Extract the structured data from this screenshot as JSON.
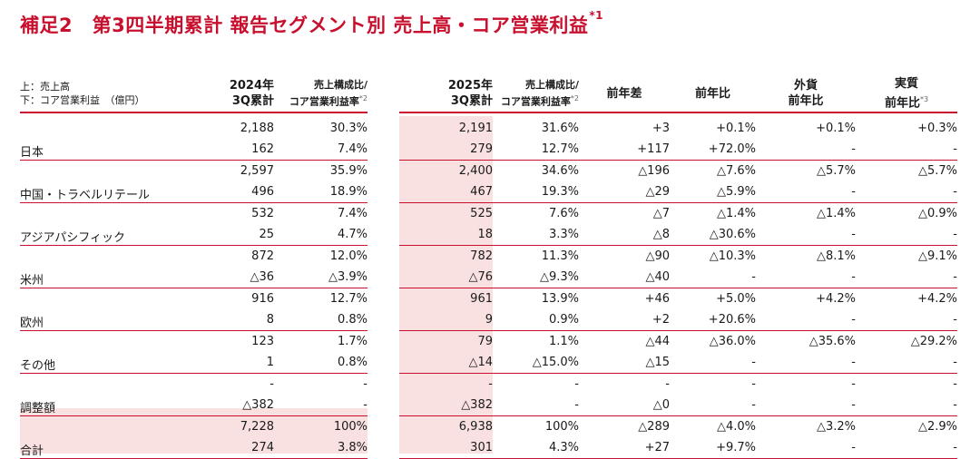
{
  "title": {
    "main": "補足2　第3四半期累計 報告セグメント別 売上高・コア営業利益",
    "note": "*1"
  },
  "header": {
    "legend_line1": "上：売上高",
    "legend_line2": "下：コア営業利益　（億円）",
    "col_2024_line1": "2024年",
    "col_2024_line2": "3Q累計",
    "col_ratio1_line1": "売上構成比/",
    "col_ratio1_line2": "コア営業利益率",
    "col_ratio1_note": "*2",
    "col_2025_line1": "2025年",
    "col_2025_line2": "3Q累計",
    "col_ratio2_line1": "売上構成比/",
    "col_ratio2_line2": "コア営業利益率",
    "col_ratio2_note": "*2",
    "col_diff": "前年差",
    "col_yoy": "前年比",
    "col_fx_line1": "外貨",
    "col_fx_line2": "前年比",
    "col_real_line1": "実質",
    "col_real_line2": "前年比",
    "col_real_note": "*3"
  },
  "rows": [
    {
      "label": "日本",
      "sales": [
        "2,188",
        "30.3%",
        "2,191",
        "31.6%",
        "+3",
        "+0.1%",
        "+0.1%",
        "+0.3%"
      ],
      "profit": [
        "162",
        "7.4%",
        "279",
        "12.7%",
        "+117",
        "+72.0%",
        "-",
        "-"
      ]
    },
    {
      "label": "中国・トラベルリテール",
      "sales": [
        "2,597",
        "35.9%",
        "2,400",
        "34.6%",
        "△196",
        "△7.6%",
        "△5.7%",
        "△5.7%"
      ],
      "profit": [
        "496",
        "18.9%",
        "467",
        "19.3%",
        "△29",
        "△5.9%",
        "-",
        "-"
      ]
    },
    {
      "label": "アジアパシフィック",
      "sales": [
        "532",
        "7.4%",
        "525",
        "7.6%",
        "△7",
        "△1.4%",
        "△1.4%",
        "△0.9%"
      ],
      "profit": [
        "25",
        "4.7%",
        "18",
        "3.3%",
        "△8",
        "△30.6%",
        "-",
        "-"
      ]
    },
    {
      "label": "米州",
      "sales": [
        "872",
        "12.0%",
        "782",
        "11.3%",
        "△90",
        "△10.3%",
        "△8.1%",
        "△9.1%"
      ],
      "profit": [
        "△36",
        "△3.9%",
        "△76",
        "△9.3%",
        "△40",
        "-",
        "-",
        "-"
      ]
    },
    {
      "label": "欧州",
      "sales": [
        "916",
        "12.7%",
        "961",
        "13.9%",
        "+46",
        "+5.0%",
        "+4.2%",
        "+4.2%"
      ],
      "profit": [
        "8",
        "0.8%",
        "9",
        "0.9%",
        "+2",
        "+20.6%",
        "-",
        "-"
      ]
    },
    {
      "label": "その他",
      "sales": [
        "123",
        "1.7%",
        "79",
        "1.1%",
        "△44",
        "△36.0%",
        "△35.6%",
        "△29.2%"
      ],
      "profit": [
        "1",
        "0.8%",
        "△14",
        "△15.0%",
        "△15",
        "-",
        "-",
        "-"
      ]
    },
    {
      "label": "調整額",
      "sales": [
        "-",
        "-",
        "-",
        "-",
        "-",
        "-",
        "-",
        "-"
      ],
      "profit": [
        "△382",
        "-",
        "△382",
        "-",
        "△0",
        "-",
        "-",
        "-"
      ]
    },
    {
      "label": "合計",
      "sales": [
        "7,228",
        "100%",
        "6,938",
        "100%",
        "△289",
        "△4.0%",
        "△3.2%",
        "△2.9%"
      ],
      "profit": [
        "274",
        "3.8%",
        "301",
        "4.3%",
        "+27",
        "+9.7%",
        "-",
        "-"
      ]
    }
  ]
}
